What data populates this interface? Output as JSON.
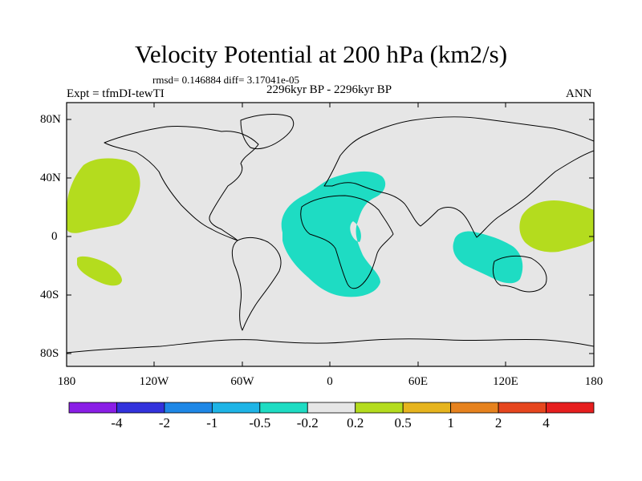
{
  "title": "Velocity Potential at 200 hPa (km2/s)",
  "stats": "rmsd= 0.146884 diff= 3.17041e-05",
  "experiment": "Expt = tfmDI-tewTI",
  "period": "2296kyr BP - 2296kyr BP",
  "season": "ANN",
  "map": {
    "lat_labels": [
      "80N",
      "40N",
      "0",
      "40S",
      "80S"
    ],
    "lon_labels": [
      "180",
      "120W",
      "60W",
      "0",
      "60E",
      "120E",
      "180"
    ]
  },
  "colorbar": {
    "labels": [
      "-4",
      "-2",
      "-1",
      "-0.5",
      "-0.2",
      "0.2",
      "0.5",
      "1",
      "2",
      "4"
    ],
    "colors": [
      "#8a1ee6",
      "#3232dc",
      "#1e87e6",
      "#1eb4e6",
      "#1edcc3",
      "#e6e6e6",
      "#b4dc1e",
      "#e6b41e",
      "#e6821e",
      "#e6461e",
      "#e61e1e"
    ]
  },
  "colors": {
    "land_bg": "#e6e6e6",
    "negative_fill": "#1edcc3",
    "positive_fill": "#b4dc1e"
  }
}
